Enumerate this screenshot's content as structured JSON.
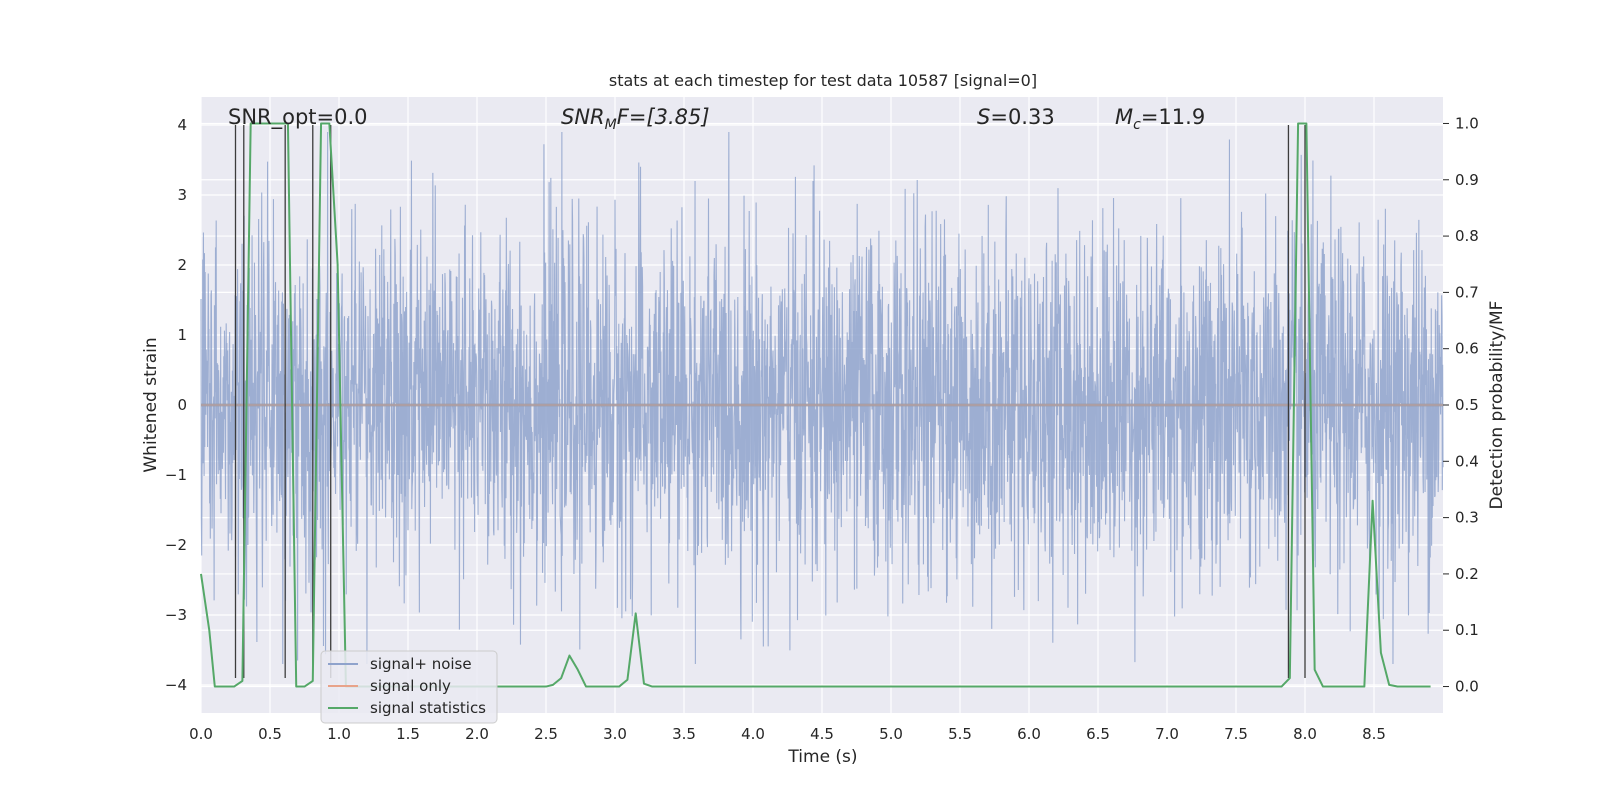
{
  "chart_data": {
    "type": "line",
    "title": "stats at each timestep for test data 10587 [signal=0]",
    "xlabel": "Time (s)",
    "ylabel": "Whitened strain",
    "y2label": "Detection probability/MF",
    "xlim": [
      0,
      9.0
    ],
    "ylim": [
      -4.4,
      4.4
    ],
    "y2lim": [
      -0.047,
      1.047
    ],
    "x_ticks": [
      "0.0",
      "0.5",
      "1.0",
      "1.5",
      "2.0",
      "2.5",
      "3.0",
      "3.5",
      "4.0",
      "4.5",
      "5.0",
      "5.5",
      "6.0",
      "6.5",
      "7.0",
      "7.5",
      "8.0",
      "8.5"
    ],
    "y_ticks": [
      "4",
      "3",
      "2",
      "1",
      "0",
      "−1",
      "−2",
      "−3",
      "−4"
    ],
    "y2_ticks": [
      "1.0",
      "0.9",
      "0.8",
      "0.7",
      "0.6",
      "0.5",
      "0.4",
      "0.3",
      "0.2",
      "0.1",
      "0.0"
    ],
    "grid": true,
    "legend_position": "bottom-left",
    "annotations": {
      "snr_opt": "SNR_opt=0.0",
      "snr_mf_base": "SNR",
      "snr_mf_sub": "M",
      "snr_mf_rest": "F=[3.85]",
      "s_var": "S",
      "s_rest": "=0.33",
      "mc_var": "M",
      "mc_sub": "c",
      "mc_rest": "=11.9"
    },
    "series": [
      {
        "name": "signal+ noise",
        "color": "#8fa3cc",
        "amplitude_range": [
          -3.7,
          3.9
        ],
        "description_values": "white noise samples, 4096 Hz"
      },
      {
        "name": "signal only",
        "color": "#e8a38a",
        "values": "zero"
      },
      {
        "name": "signal statistics",
        "color": "#55a868",
        "axis": "right",
        "x": [
          0.0,
          0.06,
          0.1,
          0.18,
          0.24,
          0.3,
          0.36,
          0.42,
          0.48,
          0.54,
          0.6,
          0.63,
          0.69,
          0.75,
          0.81,
          0.87,
          0.93,
          0.99,
          1.05,
          1.11,
          1.2,
          1.4,
          1.6,
          1.8,
          2.0,
          2.2,
          2.4,
          2.5,
          2.55,
          2.61,
          2.67,
          2.73,
          2.79,
          2.85,
          2.91,
          2.97,
          3.03,
          3.09,
          3.15,
          3.21,
          3.27,
          3.35,
          3.6,
          4.0,
          4.5,
          5.0,
          5.5,
          6.0,
          6.5,
          7.0,
          7.5,
          7.71,
          7.77,
          7.83,
          7.89,
          7.95,
          8.01,
          8.07,
          8.13,
          8.19,
          8.25,
          8.31,
          8.37,
          8.43,
          8.49,
          8.55,
          8.61,
          8.67,
          8.73,
          8.79,
          8.85,
          8.91
        ],
        "values": [
          0.2,
          0.1,
          0.0,
          0.0,
          0.0,
          0.01,
          1.0,
          1.0,
          1.0,
          1.0,
          1.0,
          1.0,
          0.0,
          0.0,
          0.01,
          1.0,
          1.0,
          0.75,
          0.0,
          0.0,
          0.0,
          0.0,
          0.0,
          0.0,
          0.0,
          0.0,
          0.0,
          0.0,
          0.003,
          0.015,
          0.055,
          0.03,
          0.0,
          0.0,
          0.0,
          0.0,
          0.0,
          0.012,
          0.13,
          0.005,
          0.0,
          0.0,
          0.0,
          0.0,
          0.0,
          0.0,
          0.0,
          0.0,
          0.0,
          0.0,
          0.0,
          0.0,
          0.0,
          0.0,
          0.015,
          1.0,
          1.0,
          0.03,
          0.0,
          0.0,
          0.0,
          0.0,
          0.0,
          0.0,
          0.33,
          0.06,
          0.003,
          0.0,
          0.0,
          0.0,
          0.0,
          0.0
        ]
      }
    ],
    "vertical_markers": {
      "color": "#3c3c3c",
      "x": [
        0.25,
        0.31,
        0.61,
        0.81,
        0.94,
        7.88,
        8.0
      ]
    }
  }
}
